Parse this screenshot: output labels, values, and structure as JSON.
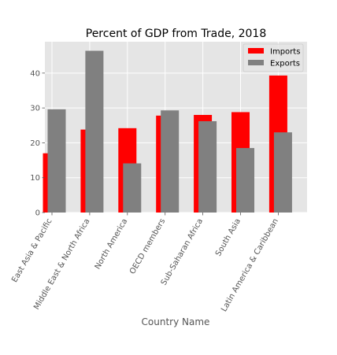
{
  "chart_data": {
    "type": "bar",
    "title": "Percent of GDP from Trade, 2018",
    "xlabel": "Country Name",
    "ylabel": "",
    "ylim": [
      0,
      49
    ],
    "yticks": [
      0,
      10,
      20,
      30,
      40
    ],
    "grid": true,
    "legend_position": "top-right",
    "categories": [
      "East Asia & Pacific",
      "Middle East & North Africa",
      "North America",
      "OECD members",
      "Sub-Saharan Africa",
      "South Asia",
      "Latin America & Caribbean"
    ],
    "series": [
      {
        "name": "Imports",
        "color": "#ff0000",
        "values": [
          17.0,
          23.8,
          24.2,
          27.8,
          28.0,
          28.8,
          39.3
        ]
      },
      {
        "name": "Exports",
        "color": "#808080",
        "values": [
          29.6,
          46.4,
          14.1,
          29.3,
          26.2,
          18.5,
          23.0
        ]
      }
    ]
  }
}
